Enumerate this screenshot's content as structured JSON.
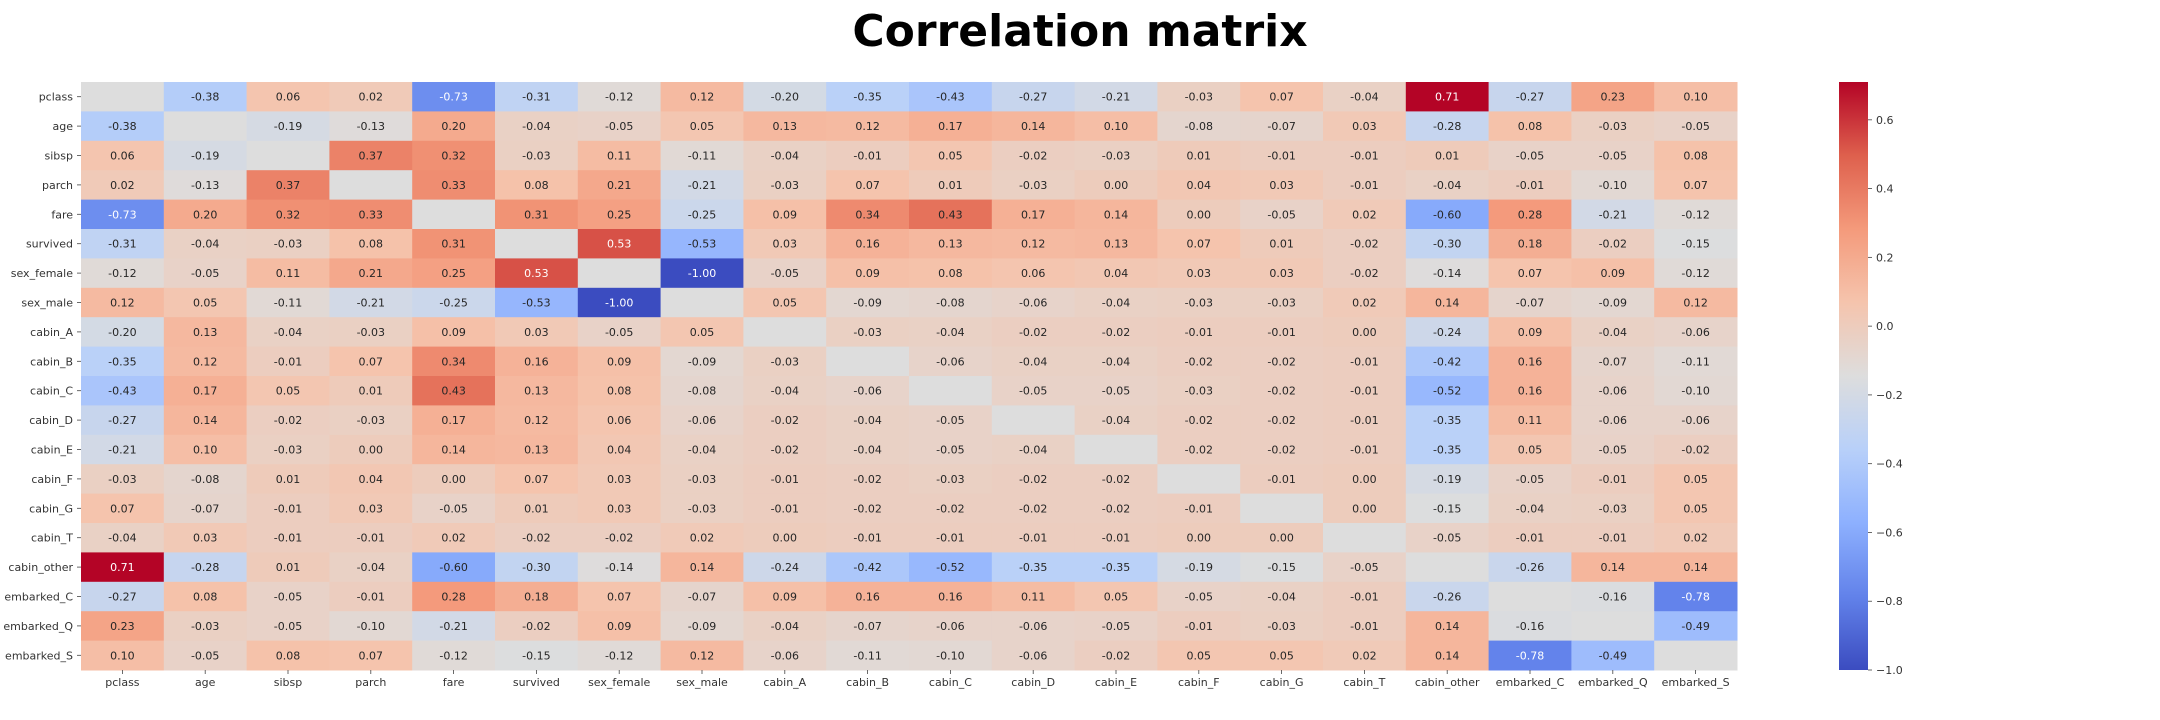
{
  "chart_data": {
    "type": "heatmap",
    "title": "Correlation matrix",
    "colormap": "coolwarm",
    "colors": {
      "low": "#3b4cc0",
      "mid": "#dddddd",
      "high": "#b40426"
    },
    "vmin": -1.0,
    "vmax": 0.71,
    "annotate_diagonal": false,
    "rows": [
      "pclass",
      "age",
      "sibsp",
      "parch",
      "fare",
      "survived",
      "sex_female",
      "sex_male",
      "cabin_A",
      "cabin_B",
      "cabin_C",
      "cabin_D",
      "cabin_E",
      "cabin_F",
      "cabin_G",
      "cabin_T",
      "cabin_other",
      "embarked_C",
      "embarked_Q",
      "embarked_S"
    ],
    "cols": [
      "pclass",
      "age",
      "sibsp",
      "parch",
      "fare",
      "survived",
      "sex_female",
      "sex_male",
      "cabin_A",
      "cabin_B",
      "cabin_C",
      "cabin_D",
      "cabin_E",
      "cabin_F",
      "cabin_G",
      "cabin_T",
      "cabin_other",
      "embarked_C",
      "embarked_Q",
      "embarked_S"
    ],
    "values": [
      [
        null,
        -0.38,
        0.06,
        0.02,
        -0.73,
        -0.31,
        -0.12,
        0.12,
        -0.2,
        -0.35,
        -0.43,
        -0.27,
        -0.21,
        -0.03,
        0.07,
        -0.04,
        0.71,
        -0.27,
        0.23,
        0.1
      ],
      [
        -0.38,
        null,
        -0.19,
        -0.13,
        0.2,
        -0.04,
        -0.05,
        0.05,
        0.13,
        0.12,
        0.17,
        0.14,
        0.1,
        -0.08,
        -0.07,
        0.03,
        -0.28,
        0.08,
        -0.03,
        -0.05
      ],
      [
        0.06,
        -0.19,
        null,
        0.37,
        0.32,
        -0.03,
        0.11,
        -0.11,
        -0.04,
        -0.01,
        0.05,
        -0.02,
        -0.03,
        0.01,
        -0.01,
        -0.01,
        0.01,
        -0.05,
        -0.05,
        0.08
      ],
      [
        0.02,
        -0.13,
        0.37,
        null,
        0.33,
        0.08,
        0.21,
        -0.21,
        -0.03,
        0.07,
        0.01,
        -0.03,
        0.0,
        0.04,
        0.03,
        -0.01,
        -0.04,
        -0.01,
        -0.1,
        0.07
      ],
      [
        -0.73,
        0.2,
        0.32,
        0.33,
        null,
        0.31,
        0.25,
        -0.25,
        0.09,
        0.34,
        0.43,
        0.17,
        0.14,
        0.0,
        -0.05,
        0.02,
        -0.6,
        0.28,
        -0.21,
        -0.12
      ],
      [
        -0.31,
        -0.04,
        -0.03,
        0.08,
        0.31,
        null,
        0.53,
        -0.53,
        0.03,
        0.16,
        0.13,
        0.12,
        0.13,
        0.07,
        0.01,
        -0.02,
        -0.3,
        0.18,
        -0.02,
        -0.15
      ],
      [
        -0.12,
        -0.05,
        0.11,
        0.21,
        0.25,
        0.53,
        null,
        -1.0,
        -0.05,
        0.09,
        0.08,
        0.06,
        0.04,
        0.03,
        0.03,
        -0.02,
        -0.14,
        0.07,
        0.09,
        -0.12
      ],
      [
        0.12,
        0.05,
        -0.11,
        -0.21,
        -0.25,
        -0.53,
        -1.0,
        null,
        0.05,
        -0.09,
        -0.08,
        -0.06,
        -0.04,
        -0.03,
        -0.03,
        0.02,
        0.14,
        -0.07,
        -0.09,
        0.12
      ],
      [
        -0.2,
        0.13,
        -0.04,
        -0.03,
        0.09,
        0.03,
        -0.05,
        0.05,
        null,
        -0.03,
        -0.04,
        -0.02,
        -0.02,
        -0.01,
        -0.01,
        -0.0,
        -0.24,
        0.09,
        -0.04,
        -0.06
      ],
      [
        -0.35,
        0.12,
        -0.01,
        0.07,
        0.34,
        0.16,
        0.09,
        -0.09,
        -0.03,
        null,
        -0.06,
        -0.04,
        -0.04,
        -0.02,
        -0.02,
        -0.01,
        -0.42,
        0.16,
        -0.07,
        -0.11
      ],
      [
        -0.43,
        0.17,
        0.05,
        0.01,
        0.43,
        0.13,
        0.08,
        -0.08,
        -0.04,
        -0.06,
        null,
        -0.05,
        -0.05,
        -0.03,
        -0.02,
        -0.01,
        -0.52,
        0.16,
        -0.06,
        -0.1
      ],
      [
        -0.27,
        0.14,
        -0.02,
        -0.03,
        0.17,
        0.12,
        0.06,
        -0.06,
        -0.02,
        -0.04,
        -0.05,
        null,
        -0.04,
        -0.02,
        -0.02,
        -0.01,
        -0.35,
        0.11,
        -0.06,
        -0.06
      ],
      [
        -0.21,
        0.1,
        -0.03,
        0.0,
        0.14,
        0.13,
        0.04,
        -0.04,
        -0.02,
        -0.04,
        -0.05,
        -0.04,
        null,
        -0.02,
        -0.02,
        -0.01,
        -0.35,
        0.05,
        -0.05,
        -0.02
      ],
      [
        -0.03,
        -0.08,
        0.01,
        0.04,
        0.0,
        0.07,
        0.03,
        -0.03,
        -0.01,
        -0.02,
        -0.03,
        -0.02,
        -0.02,
        null,
        -0.01,
        -0.0,
        -0.19,
        -0.05,
        -0.01,
        0.05
      ],
      [
        0.07,
        -0.07,
        -0.01,
        0.03,
        -0.05,
        0.01,
        0.03,
        -0.03,
        -0.01,
        -0.02,
        -0.02,
        -0.02,
        -0.02,
        -0.01,
        null,
        -0.0,
        -0.15,
        -0.04,
        -0.03,
        0.05
      ],
      [
        -0.04,
        0.03,
        -0.01,
        -0.01,
        0.02,
        -0.02,
        -0.02,
        0.02,
        -0.0,
        -0.01,
        -0.01,
        -0.01,
        -0.01,
        -0.0,
        -0.0,
        null,
        -0.05,
        -0.01,
        -0.01,
        0.02
      ],
      [
        0.71,
        -0.28,
        0.01,
        -0.04,
        -0.6,
        -0.3,
        -0.14,
        0.14,
        -0.24,
        -0.42,
        -0.52,
        -0.35,
        -0.35,
        -0.19,
        -0.15,
        -0.05,
        null,
        -0.26,
        0.14,
        0.14
      ],
      [
        -0.27,
        0.08,
        -0.05,
        -0.01,
        0.28,
        0.18,
        0.07,
        -0.07,
        0.09,
        0.16,
        0.16,
        0.11,
        0.05,
        -0.05,
        -0.04,
        -0.01,
        -0.26,
        null,
        -0.16,
        -0.78
      ],
      [
        0.23,
        -0.03,
        -0.05,
        -0.1,
        -0.21,
        -0.02,
        0.09,
        -0.09,
        -0.04,
        -0.07,
        -0.06,
        -0.06,
        -0.05,
        -0.01,
        -0.03,
        -0.01,
        0.14,
        -0.16,
        null,
        -0.49
      ],
      [
        0.1,
        -0.05,
        0.08,
        0.07,
        -0.12,
        -0.15,
        -0.12,
        0.12,
        -0.06,
        -0.11,
        -0.1,
        -0.06,
        -0.02,
        0.05,
        0.05,
        0.02,
        0.14,
        -0.78,
        -0.49,
        null
      ]
    ],
    "colorbar": {
      "ticks": [
        0.6,
        0.4,
        0.2,
        0.0,
        -0.2,
        -0.4,
        -0.6,
        -0.8,
        -1.0
      ],
      "tick_labels": [
        "0.6",
        "0.4",
        "0.2",
        "0.0",
        "−0.2",
        "−0.4",
        "−0.6",
        "−0.8",
        "−1.0"
      ]
    }
  }
}
